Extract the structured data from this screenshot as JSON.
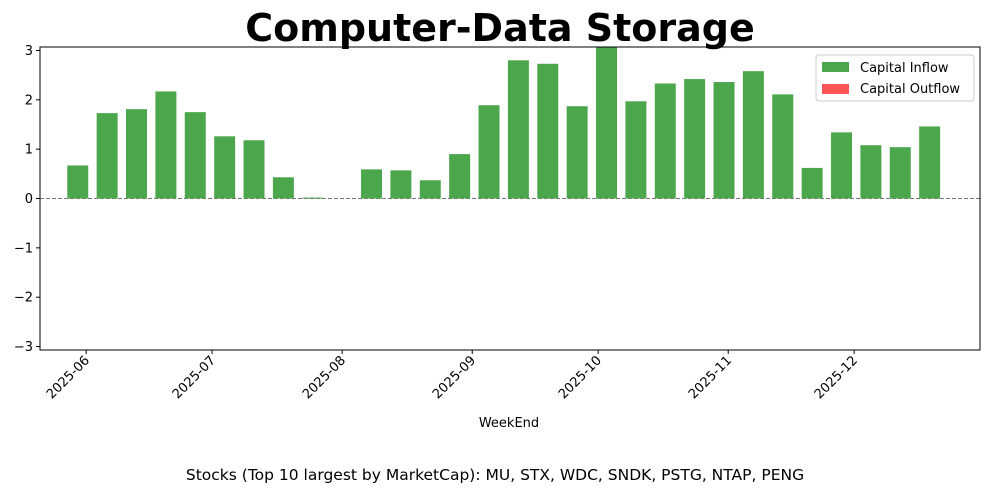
{
  "chart_data": {
    "type": "bar",
    "title": "Computer-Data Storage",
    "xlabel": "WeekEnd",
    "ylabel": "",
    "ylim": [
      -3.07,
      3.07
    ],
    "yticks": [
      -3,
      -2,
      -1,
      0,
      1,
      2,
      3
    ],
    "ytick_labels": [
      "−3",
      "−2",
      "−1",
      "0",
      "1",
      "2",
      "3"
    ],
    "xticks": [
      {
        "label": "2025-06",
        "date": "2025-06-01"
      },
      {
        "label": "2025-07",
        "date": "2025-07-01"
      },
      {
        "label": "2025-08",
        "date": "2025-08-01"
      },
      {
        "label": "2025-09",
        "date": "2025-09-01"
      },
      {
        "label": "2025-10",
        "date": "2025-10-01"
      },
      {
        "label": "2025-11",
        "date": "2025-11-01"
      },
      {
        "label": "2025-12",
        "date": "2025-12-01"
      }
    ],
    "x_range": [
      "2025-05-21",
      "2025-12-31"
    ],
    "bar_width_days": 5,
    "weeks": [
      "2025-05-30",
      "2025-06-06",
      "2025-06-13",
      "2025-06-20",
      "2025-06-27",
      "2025-07-04",
      "2025-07-11",
      "2025-07-18",
      "2025-07-25",
      "2025-08-01",
      "2025-08-08",
      "2025-08-15",
      "2025-08-22",
      "2025-08-29",
      "2025-09-05",
      "2025-09-12",
      "2025-09-19",
      "2025-09-26",
      "2025-10-03",
      "2025-10-10",
      "2025-10-17",
      "2025-10-24",
      "2025-10-31",
      "2025-11-07",
      "2025-11-14",
      "2025-11-21",
      "2025-11-28",
      "2025-12-05",
      "2025-12-12",
      "2025-12-19"
    ],
    "series": [
      {
        "name": "Capital Inflow",
        "color": "#4ca64c",
        "values": [
          0.67,
          1.73,
          1.81,
          2.17,
          1.75,
          1.26,
          1.18,
          0.43,
          0.02,
          0,
          0.59,
          0.57,
          0.37,
          0.9,
          1.89,
          2.8,
          2.73,
          1.87,
          3.07,
          1.97,
          2.33,
          2.42,
          2.36,
          2.58,
          2.11,
          0.62,
          1.34,
          1.08,
          1.04,
          1.46
        ]
      },
      {
        "name": "Capital Outflow",
        "color": "#ff5555",
        "values": [
          0,
          0,
          0,
          0,
          0,
          0,
          0,
          0,
          0,
          0,
          0,
          0,
          0,
          0,
          0,
          0,
          0,
          0,
          0,
          0,
          0,
          0,
          0,
          0,
          0,
          0,
          0,
          0,
          0,
          0
        ]
      }
    ],
    "zero_line": {
      "style": "dashed",
      "color": "#777777"
    },
    "legend": "top-right"
  },
  "footnote": "Stocks (Top 10 largest by MarketCap): MU, STX, WDC, SNDK, PSTG, NTAP, PENG"
}
